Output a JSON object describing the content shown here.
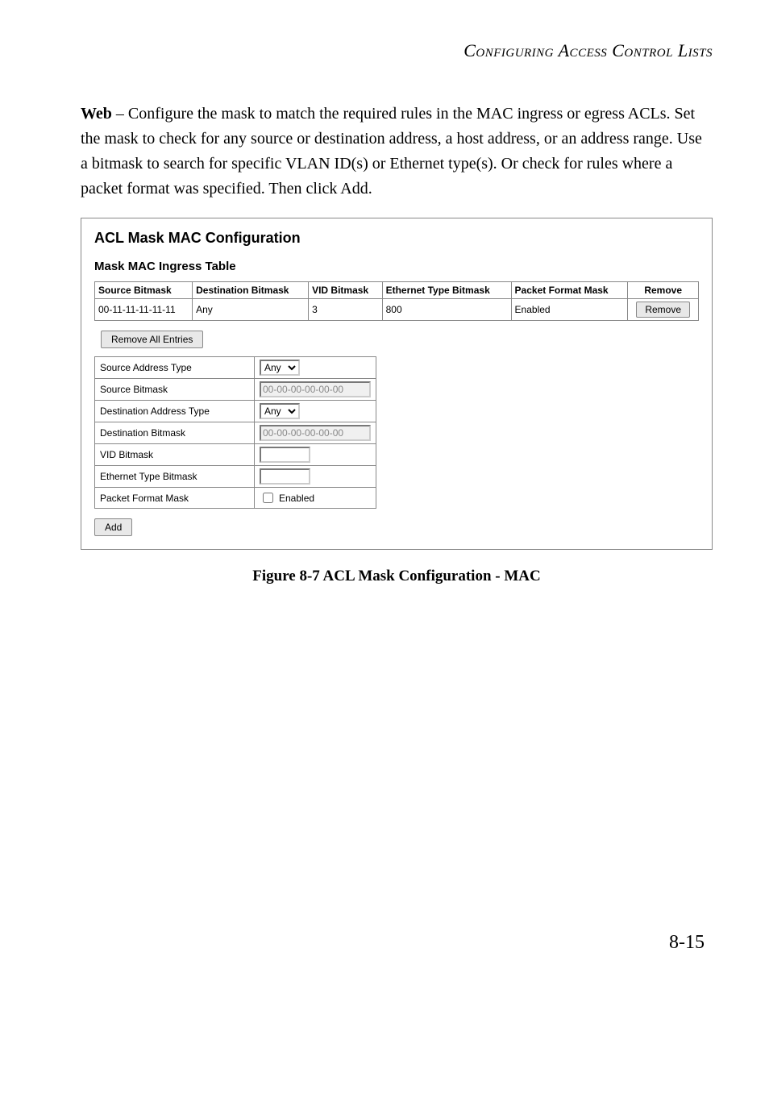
{
  "header": {
    "text": "Configuring Access Control Lists"
  },
  "paragraph": {
    "lead": "Web",
    "rest": " – Configure the mask to match the required rules in the MAC ingress or egress ACLs. Set the mask to check for any source or destination address, a host address, or an address range. Use a bitmask to search for specific VLAN ID(s) or Ethernet type(s). Or check for rules where a packet format was specified. Then click Add."
  },
  "panel": {
    "title": "ACL Mask MAC Configuration",
    "subtitle": "Mask MAC Ingress Table",
    "columns": [
      "Source Bitmask",
      "Destination Bitmask",
      "VID Bitmask",
      "Ethernet Type Bitmask",
      "Packet Format Mask",
      "Remove"
    ],
    "row": {
      "source": "00-11-11-11-11-11",
      "dest": "Any",
      "vid": "3",
      "eth": "800",
      "pfm": "Enabled",
      "remove_label": "Remove"
    },
    "remove_all": "Remove All Entries",
    "form": {
      "src_addr_type": {
        "label": "Source Address Type",
        "value": "Any"
      },
      "src_bitmask": {
        "label": "Source Bitmask",
        "value": "00-00-00-00-00-00"
      },
      "dst_addr_type": {
        "label": "Destination Address Type",
        "value": "Any"
      },
      "dst_bitmask": {
        "label": "Destination Bitmask",
        "value": "00-00-00-00-00-00"
      },
      "vid_bitmask": {
        "label": "VID Bitmask",
        "value": ""
      },
      "eth_bitmask": {
        "label": "Ethernet Type Bitmask",
        "value": ""
      },
      "pfm": {
        "label": "Packet Format Mask",
        "checkbox_label": "Enabled"
      }
    },
    "add": "Add"
  },
  "caption": "Figure 8-7  ACL Mask Configuration - MAC",
  "page_number": "8-15"
}
